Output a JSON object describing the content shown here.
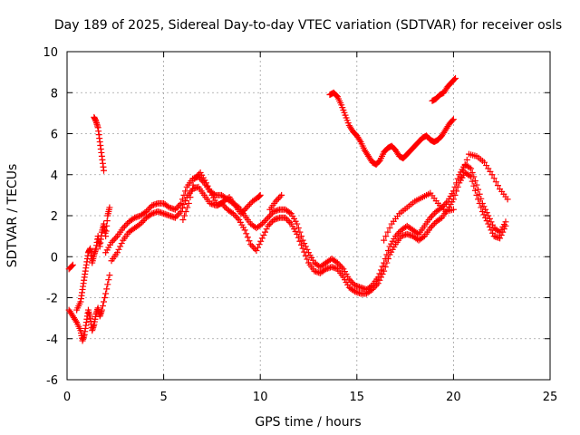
{
  "chart_data": {
    "type": "scatter",
    "title": "Day 189 of 2025, Sidereal Day-to-day VTEC variation (SDTVAR) for receiver osls",
    "xlabel": "GPS time / hours",
    "ylabel": "SDTVAR / TECUs",
    "xlim": [
      0,
      25
    ],
    "ylim": [
      -6,
      10
    ],
    "xticks": [
      "0",
      "5",
      "10",
      "15",
      "20",
      "25"
    ],
    "yticks": [
      "-6",
      "-4",
      "-2",
      "0",
      "2",
      "4",
      "6",
      "8",
      "10"
    ],
    "grid": true,
    "marker": "plus",
    "series_color": "#ff0000",
    "series": [
      {
        "points": [
          [
            0.1,
            -0.6
          ],
          [
            0.3,
            -0.4
          ],
          [
            0.1,
            -2.6
          ],
          [
            0.3,
            -2.9
          ],
          [
            0.5,
            -3.2
          ],
          [
            0.7,
            -3.6
          ],
          [
            0.8,
            -4.1
          ],
          [
            0.9,
            -3.8
          ],
          [
            1.0,
            -3.2
          ],
          [
            1.1,
            -2.6
          ],
          [
            1.2,
            -3.0
          ],
          [
            1.3,
            -3.6
          ],
          [
            1.4,
            -3.3
          ],
          [
            1.5,
            -2.8
          ],
          [
            1.6,
            -2.5
          ],
          [
            1.7,
            -2.9
          ],
          [
            1.8,
            -2.6
          ],
          [
            2.0,
            -1.8
          ],
          [
            2.2,
            -0.9
          ],
          [
            0.5,
            -2.6
          ],
          [
            0.7,
            -2.2
          ],
          [
            0.8,
            -1.6
          ],
          [
            0.9,
            -1.0
          ],
          [
            1.0,
            -0.4
          ],
          [
            1.1,
            0.2
          ],
          [
            1.2,
            0.4
          ],
          [
            1.3,
            -0.3
          ],
          [
            1.4,
            0.1
          ],
          [
            1.5,
            0.4
          ],
          [
            1.6,
            1.0
          ],
          [
            1.7,
            0.5
          ],
          [
            1.8,
            1.2
          ],
          [
            1.9,
            1.6
          ],
          [
            2.0,
            1.0
          ],
          [
            2.1,
            2.0
          ],
          [
            2.2,
            2.4
          ],
          [
            1.4,
            6.8
          ],
          [
            1.5,
            6.6
          ],
          [
            1.6,
            6.3
          ],
          [
            1.7,
            5.6
          ],
          [
            1.8,
            4.9
          ],
          [
            1.9,
            4.2
          ],
          [
            2.0,
            0.2
          ],
          [
            2.3,
            0.7
          ],
          [
            2.6,
            1.0
          ],
          [
            2.9,
            1.4
          ],
          [
            3.2,
            1.7
          ],
          [
            3.5,
            1.9
          ],
          [
            3.8,
            2.0
          ],
          [
            4.1,
            2.2
          ],
          [
            4.4,
            2.5
          ],
          [
            4.7,
            2.6
          ],
          [
            5.0,
            2.6
          ],
          [
            5.3,
            2.4
          ],
          [
            5.6,
            2.3
          ],
          [
            5.9,
            2.6
          ],
          [
            6.2,
            3.4
          ],
          [
            6.5,
            3.8
          ],
          [
            6.8,
            3.9
          ],
          [
            7.1,
            3.6
          ],
          [
            7.4,
            3.2
          ],
          [
            7.7,
            3.0
          ],
          [
            8.0,
            3.0
          ],
          [
            8.3,
            2.8
          ],
          [
            8.6,
            2.6
          ],
          [
            8.9,
            2.4
          ],
          [
            9.2,
            2.0
          ],
          [
            9.5,
            1.6
          ],
          [
            9.8,
            1.4
          ],
          [
            10.1,
            1.6
          ],
          [
            10.4,
            1.9
          ],
          [
            10.7,
            2.2
          ],
          [
            11.0,
            2.3
          ],
          [
            11.3,
            2.3
          ],
          [
            11.6,
            2.1
          ],
          [
            11.9,
            1.6
          ],
          [
            12.2,
            0.8
          ],
          [
            12.5,
            0.2
          ],
          [
            12.8,
            -0.3
          ],
          [
            13.1,
            -0.5
          ],
          [
            13.4,
            -0.3
          ],
          [
            13.7,
            -0.1
          ],
          [
            14.0,
            -0.3
          ],
          [
            14.3,
            -0.6
          ],
          [
            14.6,
            -1.1
          ],
          [
            14.9,
            -1.4
          ],
          [
            15.2,
            -1.5
          ],
          [
            15.5,
            -1.6
          ],
          [
            15.8,
            -1.4
          ],
          [
            16.1,
            -1.0
          ],
          [
            16.4,
            -0.3
          ],
          [
            16.7,
            0.5
          ],
          [
            17.0,
            1.0
          ],
          [
            17.3,
            1.3
          ],
          [
            17.6,
            1.5
          ],
          [
            17.9,
            1.3
          ],
          [
            18.2,
            1.1
          ],
          [
            18.5,
            1.5
          ],
          [
            18.8,
            1.9
          ],
          [
            19.1,
            2.2
          ],
          [
            19.4,
            2.4
          ],
          [
            19.7,
            2.7
          ],
          [
            20.0,
            3.2
          ],
          [
            20.3,
            4.0
          ],
          [
            20.6,
            4.5
          ],
          [
            20.9,
            4.3
          ],
          [
            21.2,
            3.5
          ],
          [
            21.5,
            2.6
          ],
          [
            21.8,
            2.0
          ],
          [
            22.1,
            1.4
          ],
          [
            22.4,
            1.2
          ],
          [
            22.7,
            1.7
          ],
          [
            2.3,
            -0.2
          ],
          [
            2.6,
            0.2
          ],
          [
            2.9,
            0.8
          ],
          [
            3.2,
            1.2
          ],
          [
            3.5,
            1.4
          ],
          [
            3.8,
            1.6
          ],
          [
            4.1,
            1.9
          ],
          [
            4.4,
            2.1
          ],
          [
            4.7,
            2.2
          ],
          [
            5.0,
            2.1
          ],
          [
            5.3,
            2.0
          ],
          [
            5.6,
            1.9
          ],
          [
            5.9,
            2.2
          ],
          [
            6.2,
            2.9
          ],
          [
            6.5,
            3.3
          ],
          [
            6.8,
            3.4
          ],
          [
            7.1,
            3.0
          ],
          [
            7.4,
            2.6
          ],
          [
            7.7,
            2.5
          ],
          [
            8.0,
            2.6
          ],
          [
            8.3,
            2.3
          ],
          [
            8.6,
            2.1
          ],
          [
            8.9,
            1.8
          ],
          [
            9.2,
            1.3
          ],
          [
            9.5,
            0.6
          ],
          [
            9.8,
            0.3
          ],
          [
            10.1,
            0.9
          ],
          [
            10.4,
            1.5
          ],
          [
            10.7,
            1.8
          ],
          [
            11.0,
            1.9
          ],
          [
            11.3,
            1.9
          ],
          [
            11.6,
            1.6
          ],
          [
            11.9,
            1.1
          ],
          [
            12.2,
            0.4
          ],
          [
            12.5,
            -0.3
          ],
          [
            12.8,
            -0.7
          ],
          [
            13.1,
            -0.8
          ],
          [
            13.4,
            -0.6
          ],
          [
            13.7,
            -0.5
          ],
          [
            14.0,
            -0.6
          ],
          [
            14.3,
            -1.0
          ],
          [
            14.6,
            -1.5
          ],
          [
            14.9,
            -1.7
          ],
          [
            15.2,
            -1.8
          ],
          [
            15.5,
            -1.8
          ],
          [
            15.8,
            -1.6
          ],
          [
            16.1,
            -1.3
          ],
          [
            16.4,
            -0.7
          ],
          [
            16.7,
            0.1
          ],
          [
            17.0,
            0.6
          ],
          [
            17.3,
            1.0
          ],
          [
            17.6,
            1.1
          ],
          [
            17.9,
            1.0
          ],
          [
            18.2,
            0.8
          ],
          [
            18.5,
            1.0
          ],
          [
            18.8,
            1.4
          ],
          [
            19.1,
            1.7
          ],
          [
            19.4,
            1.9
          ],
          [
            19.7,
            2.3
          ],
          [
            20.0,
            2.8
          ],
          [
            20.3,
            3.6
          ],
          [
            20.6,
            4.1
          ],
          [
            20.9,
            3.9
          ],
          [
            21.2,
            3.0
          ],
          [
            21.5,
            2.2
          ],
          [
            21.8,
            1.6
          ],
          [
            22.1,
            1.0
          ],
          [
            22.4,
            0.9
          ],
          [
            22.7,
            1.5
          ],
          [
            6.0,
            1.8
          ],
          [
            6.3,
            2.6
          ],
          [
            6.6,
            3.8
          ],
          [
            6.9,
            4.1
          ],
          [
            7.2,
            3.6
          ],
          [
            7.5,
            3.0
          ],
          [
            7.8,
            2.5
          ],
          [
            8.1,
            2.7
          ],
          [
            8.4,
            2.9
          ],
          [
            8.7,
            2.5
          ],
          [
            9.0,
            2.1
          ],
          [
            9.3,
            2.4
          ],
          [
            9.6,
            2.7
          ],
          [
            9.9,
            2.9
          ],
          [
            10.0,
            3.0
          ],
          [
            10.5,
            2.3
          ],
          [
            10.8,
            2.7
          ],
          [
            11.1,
            3.0
          ],
          [
            13.6,
            7.9
          ],
          [
            13.8,
            8.0
          ],
          [
            14.0,
            7.8
          ],
          [
            14.2,
            7.4
          ],
          [
            14.4,
            6.9
          ],
          [
            14.6,
            6.4
          ],
          [
            14.8,
            6.1
          ],
          [
            15.0,
            5.9
          ],
          [
            15.2,
            5.6
          ],
          [
            15.4,
            5.2
          ],
          [
            15.6,
            4.9
          ],
          [
            15.8,
            4.6
          ],
          [
            16.0,
            4.5
          ],
          [
            16.2,
            4.7
          ],
          [
            16.4,
            5.1
          ],
          [
            16.6,
            5.3
          ],
          [
            16.8,
            5.4
          ],
          [
            17.0,
            5.2
          ],
          [
            17.2,
            4.9
          ],
          [
            17.4,
            4.8
          ],
          [
            17.6,
            5.0
          ],
          [
            17.8,
            5.2
          ],
          [
            18.0,
            5.4
          ],
          [
            18.2,
            5.6
          ],
          [
            18.4,
            5.8
          ],
          [
            18.6,
            5.9
          ],
          [
            18.8,
            5.7
          ],
          [
            19.0,
            5.6
          ],
          [
            19.2,
            5.7
          ],
          [
            19.4,
            5.9
          ],
          [
            19.6,
            6.2
          ],
          [
            19.8,
            6.5
          ],
          [
            20.0,
            6.7
          ],
          [
            18.9,
            7.6
          ],
          [
            19.1,
            7.7
          ],
          [
            19.3,
            7.9
          ],
          [
            19.5,
            8.0
          ],
          [
            19.7,
            8.3
          ],
          [
            19.9,
            8.5
          ],
          [
            20.1,
            8.7
          ],
          [
            16.4,
            0.8
          ],
          [
            16.8,
            1.6
          ],
          [
            17.2,
            2.1
          ],
          [
            17.6,
            2.4
          ],
          [
            18.0,
            2.7
          ],
          [
            18.4,
            2.9
          ],
          [
            18.8,
            3.1
          ],
          [
            19.2,
            2.6
          ],
          [
            19.6,
            2.2
          ],
          [
            20.0,
            2.3
          ],
          [
            20.4,
            3.9
          ],
          [
            20.8,
            5.0
          ],
          [
            21.2,
            4.9
          ],
          [
            21.6,
            4.6
          ],
          [
            22.0,
            4.0
          ],
          [
            22.4,
            3.3
          ],
          [
            22.8,
            2.8
          ]
        ]
      }
    ]
  }
}
